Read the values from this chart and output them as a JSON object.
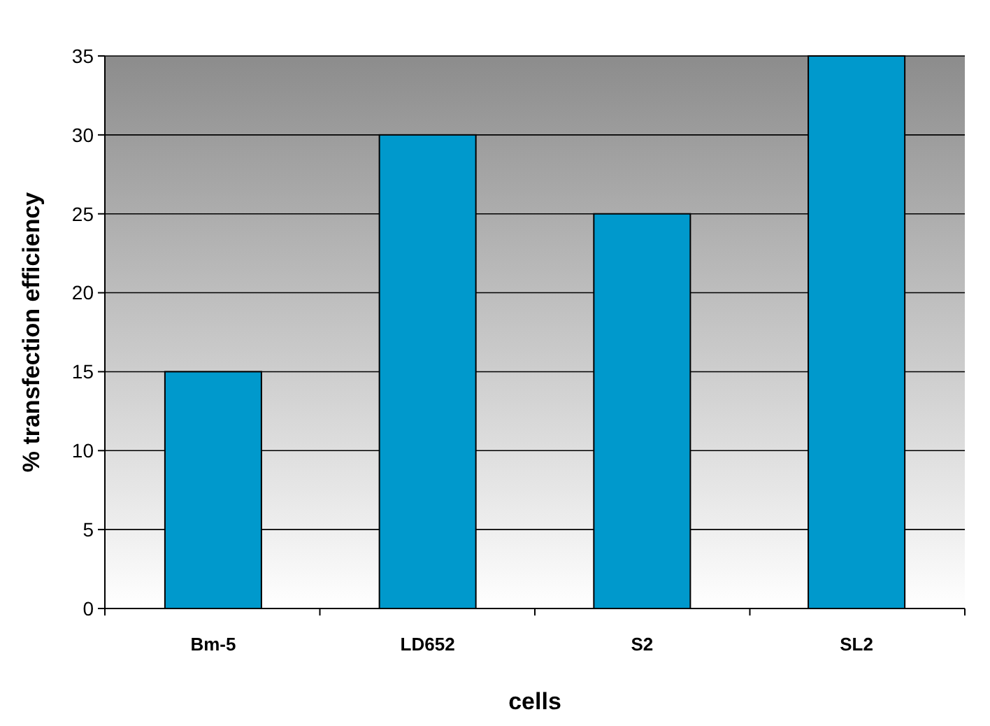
{
  "chart_data": {
    "type": "bar",
    "xlabel": "cells",
    "ylabel": "% transfection efficiency",
    "categories": [
      "Bm-5",
      "LD652",
      "S2",
      "SL2"
    ],
    "values": [
      15,
      30,
      25,
      35
    ],
    "color": "#0099cc",
    "ylim": [
      0,
      35
    ],
    "yticks": [
      0,
      5,
      10,
      15,
      20,
      25,
      30,
      35
    ],
    "grid": "y"
  }
}
